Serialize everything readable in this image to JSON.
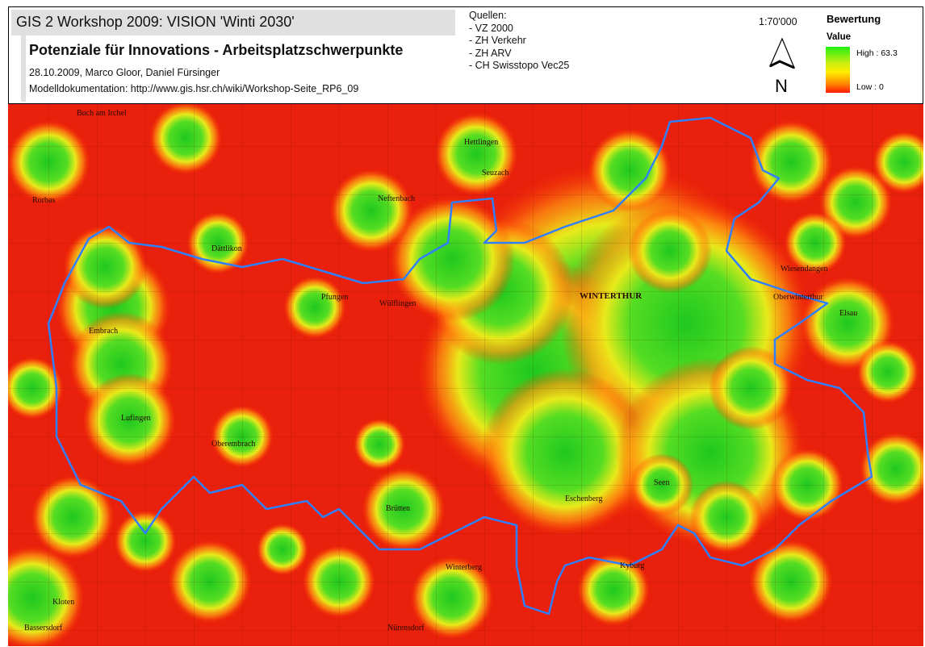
{
  "header": {
    "title": "GIS 2 Workshop 2009: VISION 'Winti 2030'",
    "subtitle": "Potenziale für Innovations - Arbeitsplatzschwerpunkte",
    "authors": "28.10.2009, Marco Gloor, Daniel Fürsinger",
    "documentation": "Modelldokumentation: http://www.gis.hsr.ch/wiki/Workshop-Seite_RP6_09"
  },
  "sources": {
    "heading": "Quellen:",
    "items": [
      "- VZ 2000",
      "- ZH Verkehr",
      "- ZH ARV",
      "- CH Swisstopo Vec25"
    ]
  },
  "scale": "1:70'000",
  "north_arrow": {
    "label": "N",
    "icon": "north-arrow-icon"
  },
  "legend": {
    "title": "Bewertung",
    "field": "Value",
    "high_label": "High : 63.3",
    "low_label": "Low : 0",
    "high_value": 63.3,
    "low_value": 0,
    "colors": {
      "high": "#22ee11",
      "mid": "#ffee00",
      "low": "#ff1a00"
    }
  },
  "map": {
    "boundary_color": "#2f7fff",
    "places": [
      "Buch am Irchel",
      "Hettlingen",
      "Seuzach",
      "Neftenbach",
      "Rorbas",
      "Dättlikon",
      "Pfungen",
      "Wülflingen",
      "WINTERTHUR",
      "Wiesendangen",
      "Oberwinterthur",
      "Embrach",
      "Lufingen",
      "Oberembrach",
      "Brütten",
      "Kyburg",
      "Kloten",
      "Bassersdorf",
      "Nürensdorf",
      "Winterberg",
      "Eschenberg",
      "Seen",
      "Elsau"
    ]
  }
}
